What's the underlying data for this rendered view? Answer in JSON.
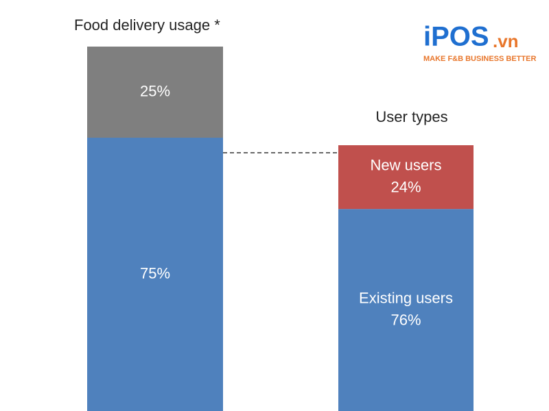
{
  "chart_data": [
    {
      "type": "bar",
      "title": "Food delivery usage *",
      "series": [
        {
          "color": "#4f81bd",
          "values": [
            75
          ],
          "value_labels": [
            "75%"
          ]
        },
        {
          "color": "#7f7f7f",
          "values": [
            25
          ],
          "value_labels": [
            "25%"
          ]
        }
      ]
    },
    {
      "type": "bar",
      "title": "User types",
      "series": [
        {
          "name": "Existing users",
          "color": "#4f81bd",
          "values": [
            76
          ],
          "value_labels": [
            "76%"
          ]
        },
        {
          "name": "New users",
          "color": "#c0504d",
          "values": [
            24
          ],
          "value_labels": [
            "24%"
          ]
        }
      ]
    }
  ],
  "logo": {
    "brand": "iPOS",
    "domain": ".vn",
    "tagline": "MAKE F&B BUSINESS BETTER"
  }
}
